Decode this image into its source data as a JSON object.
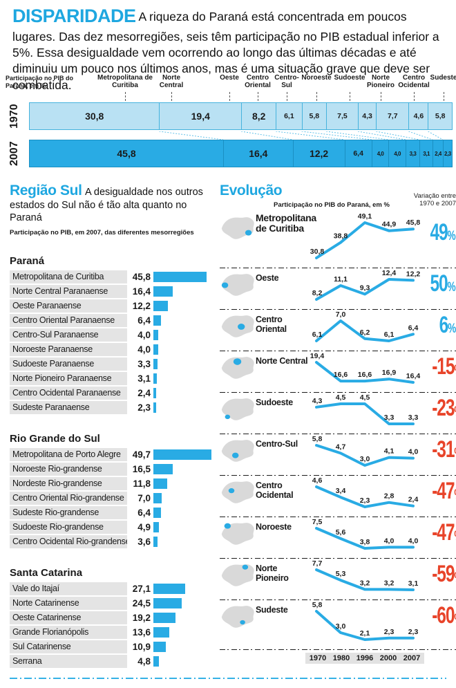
{
  "page": {
    "title": "DISPARIDADE",
    "intro": "A riqueza do Paraná está concentrada em poucos lugares. Das dez mesorregiões, seis têm participação no PIB estadual inferior a 5%. Essa desigualdade vem ocorrendo ao longo das últimas décadas e até diminuiu um pouco nos últimos anos, mas é uma situação grave que deve ser combatida."
  },
  "colors": {
    "accent": "#29abe4",
    "bar_1970": "#b9e1f3",
    "bar_2007": "#29abe4",
    "positive_change": "#29abe4",
    "negative_change": "#e8442a",
    "row_label_bg": "#e4e4e4",
    "map_gray": "#d9d9d9"
  },
  "top_chart": {
    "caption": "Participação no PIB do Paraná, em %",
    "row_labels": [
      "1970",
      "2007"
    ],
    "region_labels": [
      "Metropolitana de Curitiba",
      "Norte Central",
      "Oeste",
      "Centro Oriental",
      "Centro- Sul",
      "Noroeste",
      "Sudoeste",
      "Norte Pioneiro",
      "Centro Ocidental",
      "Sudeste"
    ]
  },
  "regiao_sul": {
    "title": "Região Sul",
    "description": "A desigualdade nos outros estados do Sul não é tão alta quanto no Paraná",
    "subtitle": "Participação no PIB, em 2007, das diferentes mesorregiões"
  },
  "evolucao": {
    "title": "Evolução",
    "subtitle": "Participação no PIB do Paraná, em %",
    "variation_label": "Variação entre 1970 e 2007"
  },
  "chart_data": [
    {
      "id": "pib-participacao-1970-2007",
      "type": "bar",
      "stacked": true,
      "orientation": "horizontal",
      "title": "Participação no PIB do Paraná, em %",
      "categories": [
        "Metropolitana de Curitiba",
        "Norte Central",
        "Oeste",
        "Centro Oriental",
        "Centro-Sul",
        "Noroeste",
        "Sudoeste",
        "Norte Pioneiro",
        "Centro Ocidental",
        "Sudeste"
      ],
      "series": [
        {
          "name": "1970",
          "values": [
            30.8,
            19.4,
            8.2,
            6.1,
            5.8,
            7.5,
            4.3,
            7.7,
            4.6,
            5.8
          ]
        },
        {
          "name": "2007",
          "values": [
            45.8,
            16.4,
            12.2,
            6.4,
            4.0,
            4.0,
            3.3,
            3.1,
            2.4,
            2.3
          ]
        }
      ]
    },
    {
      "id": "regiao-sul-pib-2007",
      "type": "bar",
      "orientation": "horizontal",
      "title": "Participação no PIB, em 2007, das diferentes mesorregiões",
      "groups": [
        {
          "name": "Paraná",
          "categories": [
            "Metropolitana de Curitiba",
            "Norte Central Paranaense",
            "Oeste Paranaense",
            "Centro Oriental Paranaense",
            "Centro-Sul Paranaense",
            "Noroeste Paranaense",
            "Sudoeste Paranaense",
            "Norte Pioneiro Paranaense",
            "Centro Ocidental Paranaense",
            "Sudeste Paranaense"
          ],
          "values": [
            45.8,
            16.4,
            12.2,
            6.4,
            4.0,
            4.0,
            3.3,
            3.1,
            2.4,
            2.3
          ]
        },
        {
          "name": "Rio Grande do Sul",
          "categories": [
            "Metropolitana de Porto Alegre",
            "Noroeste Rio-grandense",
            "Nordeste Rio-grandense",
            "Centro Oriental Rio-grandense",
            "Sudeste Rio-grandense",
            "Sudoeste Rio-grandense",
            "Centro Ocidental Rio-grandense"
          ],
          "values": [
            49.7,
            16.5,
            11.8,
            7.0,
            6.4,
            4.9,
            3.6
          ]
        },
        {
          "name": "Santa Catarina",
          "categories": [
            "Vale do Itajaí",
            "Norte Catarinense",
            "Oeste Catarinense",
            "Grande Florianópolis",
            "Sul Catarinense",
            "Serrana"
          ],
          "values": [
            27.1,
            24.5,
            19.2,
            13.6,
            10.9,
            4.8
          ]
        }
      ]
    },
    {
      "id": "evolucao-pib-mesorregioes",
      "type": "line",
      "title": "Evolução — Participação no PIB do Paraná, em %",
      "x": [
        1970,
        1980,
        1996,
        2000,
        2007
      ],
      "series": [
        {
          "name": "Metropolitana de Curitiba",
          "values": [
            30.8,
            38.8,
            49.1,
            44.9,
            45.8
          ],
          "change": "49%",
          "map": "metropolitana"
        },
        {
          "name": "Oeste",
          "values": [
            8.2,
            11.1,
            9.3,
            12.4,
            12.2
          ],
          "change": "50%",
          "map": "oeste"
        },
        {
          "name": "Centro Oriental",
          "values": [
            6.1,
            7.0,
            6.2,
            6.1,
            6.4
          ],
          "change": "6%",
          "map": "centro-oriental"
        },
        {
          "name": "Norte Central",
          "values": [
            19.4,
            16.6,
            16.6,
            16.9,
            16.4
          ],
          "change": "-15%",
          "map": "norte-central"
        },
        {
          "name": "Sudoeste",
          "values": [
            4.3,
            4.5,
            4.5,
            3.3,
            3.3
          ],
          "change": "-23%",
          "map": "sudoeste"
        },
        {
          "name": "Centro-Sul",
          "values": [
            5.8,
            4.7,
            3.0,
            4.1,
            4.0
          ],
          "change": "-31%",
          "map": "centro-sul"
        },
        {
          "name": "Centro Ocidental",
          "values": [
            4.6,
            3.4,
            2.3,
            2.8,
            2.4
          ],
          "change": "-47%",
          "map": "centro-ocidental"
        },
        {
          "name": "Noroeste",
          "values": [
            7.5,
            5.6,
            3.8,
            4.0,
            4.0
          ],
          "change": "-47%",
          "map": "noroeste"
        },
        {
          "name": "Norte Pioneiro",
          "values": [
            7.7,
            5.3,
            3.2,
            3.2,
            3.1
          ],
          "change": "-59%",
          "map": "norte-pioneiro"
        },
        {
          "name": "Sudeste",
          "values": [
            5.8,
            3.0,
            2.1,
            2.3,
            2.3
          ],
          "change": "-60%",
          "map": "sudeste"
        }
      ]
    }
  ]
}
